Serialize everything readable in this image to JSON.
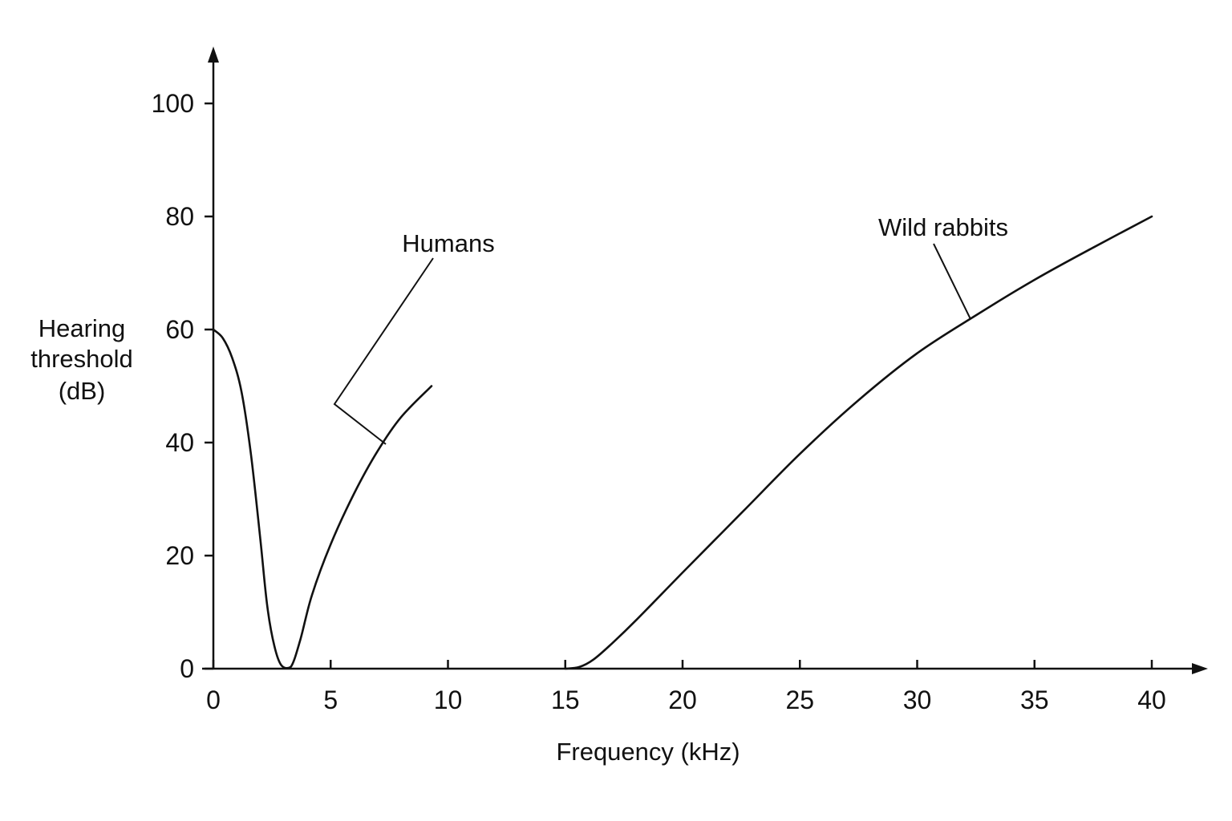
{
  "chart_data": {
    "type": "line",
    "xlabel": "Frequency (kHz)",
    "ylabel_lines": [
      "Hearing",
      "threshold",
      "(dB)"
    ],
    "xlim": [
      0,
      40
    ],
    "ylim": [
      0,
      100
    ],
    "x_ticks": [
      0,
      5,
      10,
      15,
      20,
      25,
      30,
      35,
      40
    ],
    "y_ticks": [
      0,
      20,
      40,
      60,
      80,
      100
    ],
    "grid": false,
    "legend": "none",
    "line_color": "#111111",
    "series": [
      {
        "name": "Humans",
        "points": [
          [
            0,
            60
          ],
          [
            0.4,
            58.5
          ],
          [
            0.8,
            55
          ],
          [
            1.2,
            49
          ],
          [
            1.6,
            38
          ],
          [
            2.0,
            23
          ],
          [
            2.3,
            11
          ],
          [
            2.6,
            4
          ],
          [
            2.9,
            0.6
          ],
          [
            3.3,
            0.3
          ],
          [
            3.7,
            5
          ],
          [
            4.2,
            13
          ],
          [
            5.0,
            22
          ],
          [
            6.0,
            31
          ],
          [
            7.0,
            38.5
          ],
          [
            8.0,
            44.5
          ],
          [
            9.3,
            50
          ]
        ]
      },
      {
        "name": "Wild rabbits",
        "points": [
          [
            15.0,
            0
          ],
          [
            15.6,
            0.3
          ],
          [
            16.2,
            1.6
          ],
          [
            17.0,
            4.5
          ],
          [
            18.0,
            8.5
          ],
          [
            20.0,
            17
          ],
          [
            22.5,
            27.5
          ],
          [
            25.0,
            38
          ],
          [
            27.5,
            47.5
          ],
          [
            30.0,
            55.8
          ],
          [
            32.5,
            62.5
          ],
          [
            35.0,
            68.8
          ],
          [
            37.5,
            74.5
          ],
          [
            40.0,
            80
          ]
        ]
      }
    ]
  }
}
